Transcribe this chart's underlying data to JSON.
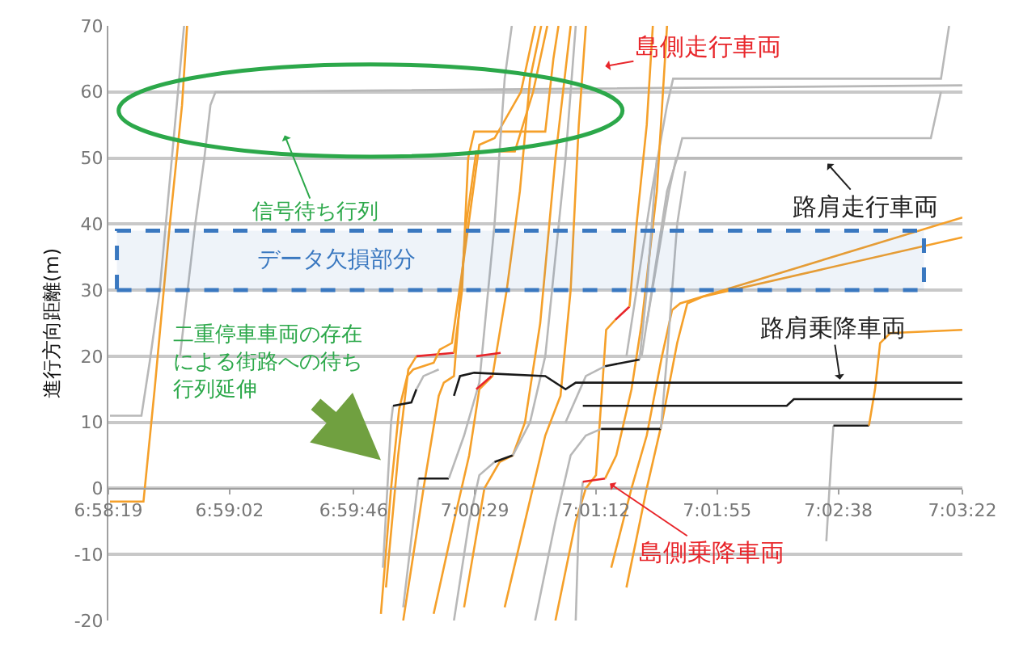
{
  "chart_data": {
    "type": "line",
    "ylabel": "進行方向距離(m)",
    "xlim": [
      6.97194,
      7.05611
    ],
    "xticks": [
      {
        "value": 6.97194,
        "label": "6:58:19"
      },
      {
        "value": 6.98389,
        "label": "6:59:02"
      },
      {
        "value": 6.99611,
        "label": "6:59:46"
      },
      {
        "value": 7.00806,
        "label": "7:00:29"
      },
      {
        "value": 7.02,
        "label": "7:01:12"
      },
      {
        "value": 7.03194,
        "label": "7:01:55"
      },
      {
        "value": 7.04389,
        "label": "7:02:38"
      },
      {
        "value": 7.05611,
        "label": "7:03:22"
      }
    ],
    "ylim": [
      -20,
      70
    ],
    "yticks": [
      -20,
      -10,
      0,
      10,
      20,
      30,
      40,
      50,
      60,
      70
    ],
    "grid": "y",
    "marker": "none",
    "line_style": "solid",
    "series": [
      {
        "color": "#b8b8b8",
        "x": [
          6.9721,
          6.9752,
          6.976,
          6.977,
          6.9785,
          6.9794
        ],
        "values": [
          11,
          11,
          19,
          30,
          55,
          70
        ]
      },
      {
        "color": "#f5a02a",
        "x": [
          6.9721,
          6.9754,
          6.9765,
          6.978,
          6.9792,
          6.9797
        ],
        "values": [
          -2,
          -2,
          15,
          40,
          58,
          70
        ]
      },
      {
        "color": "#b8b8b8",
        "x": [
          6.979,
          6.9805,
          6.9814,
          6.982,
          6.9825,
          7.0561
        ],
        "values": [
          20,
          40,
          50,
          58,
          60,
          61
        ]
      },
      {
        "color": "#b8b8b8",
        "x": [
          7.023,
          7.0255,
          7.027,
          7.0276,
          7.054,
          7.0548
        ],
        "values": [
          20,
          45,
          58,
          62,
          62,
          70
        ]
      },
      {
        "color": "#b8b8b8",
        "x": [
          7.0245,
          7.027,
          7.028,
          7.0285,
          7.053,
          7.054
        ],
        "values": [
          20,
          45,
          50,
          53,
          53,
          60
        ]
      },
      {
        "color": "#b8b8b8",
        "x": [
          7.025,
          7.0272,
          7.0279,
          7.0561
        ],
        "values": [
          25,
          45,
          50,
          50
        ]
      },
      {
        "color": "#b8b8b8",
        "x": [
          7.0427,
          7.0432,
          7.0434
        ],
        "values": [
          -8,
          5,
          9.5
        ]
      },
      {
        "color": "#1a1a1a",
        "x": [
          7.0434,
          7.0469
        ],
        "values": [
          9.5,
          9.5
        ]
      },
      {
        "color": "#f5a02a",
        "x": [
          7.0469,
          7.0475,
          7.048,
          7.049,
          7.0561
        ],
        "values": [
          9.5,
          15,
          22,
          23.5,
          24
        ]
      },
      {
        "color": "#f5a02a",
        "x": [
          6.9993,
          7.0005,
          7.0015,
          7.0023
        ],
        "values": [
          -15,
          5,
          18,
          20
        ]
      },
      {
        "color": "#e8262b",
        "x": [
          7.0023,
          7.006
        ],
        "values": [
          20,
          20.5
        ]
      },
      {
        "color": "#f5a02a",
        "x": [
          7.006,
          7.0068,
          7.0074,
          7.008,
          7.015,
          7.0158,
          7.0163
        ],
        "values": [
          20.5,
          30,
          50,
          54,
          54,
          65,
          70
        ]
      },
      {
        "color": "#f5a02a",
        "x": [
          6.9988,
          6.9998,
          7.0006,
          7.0014,
          7.002,
          7.004,
          7.0046,
          7.0058,
          7.007,
          7.0085,
          7.01,
          7.0126,
          7.014
        ],
        "values": [
          -19,
          0,
          12,
          17,
          18,
          19,
          21,
          22,
          35,
          52,
          53,
          60,
          70
        ]
      },
      {
        "color": "#f5a02a",
        "x": [
          7.001,
          7.003,
          7.0045,
          7.005,
          7.006,
          7.0072,
          7.0082,
          7.012,
          7.0138,
          7.0152
        ],
        "values": [
          -20,
          0,
          14,
          16,
          17,
          40,
          51,
          51,
          60,
          70
        ]
      },
      {
        "color": "#f5a02a",
        "x": [
          7.004,
          7.006,
          7.0075,
          7.0085,
          7.0098,
          7.0112,
          7.0125,
          7.0135,
          7.0146
        ],
        "values": [
          -19,
          -5,
          5,
          15,
          17,
          30,
          45,
          62,
          70
        ]
      },
      {
        "color": "#f5a02a",
        "x": [
          7.007,
          7.009,
          7.0105,
          7.0118,
          7.013,
          7.0145,
          7.016,
          7.0175
        ],
        "values": [
          -18,
          0,
          4,
          5,
          10,
          25,
          50,
          70
        ]
      },
      {
        "color": "#f5a02a",
        "x": [
          7.011,
          7.013,
          7.015,
          7.0165,
          7.0175,
          7.0183,
          7.019
        ],
        "values": [
          -18,
          -5,
          8,
          14,
          30,
          55,
          70
        ]
      },
      {
        "color": "#f5a02a",
        "x": [
          7.016,
          7.018,
          7.019,
          7.02,
          7.0206,
          7.021,
          7.0219
        ],
        "values": [
          -20,
          -5,
          0,
          2,
          15,
          24,
          25.5
        ]
      },
      {
        "color": "#e8262b",
        "x": [
          7.0219,
          7.0233
        ],
        "values": [
          25.5,
          27.5
        ]
      },
      {
        "color": "#f5a02a",
        "x": [
          7.0233,
          7.024,
          7.025,
          7.0256
        ],
        "values": [
          27.5,
          40,
          55,
          70
        ]
      },
      {
        "color": "#b8b8b8",
        "x": [
          7.018,
          7.0183,
          7.0187
        ],
        "values": [
          -20,
          -5,
          1
        ]
      },
      {
        "color": "#e8262b",
        "x": [
          7.0187,
          7.0209
        ],
        "values": [
          1,
          1.5
        ]
      },
      {
        "color": "#f5a02a",
        "x": [
          7.0209,
          7.022,
          7.0235,
          7.0245,
          7.026,
          7.027
        ],
        "values": [
          1.5,
          5,
          15,
          25,
          45,
          70
        ]
      },
      {
        "color": "#f5a02a",
        "x": [
          7.0215,
          7.0235,
          7.025,
          7.0265,
          7.0275,
          7.0283,
          7.0561
        ],
        "values": [
          -12,
          0,
          8,
          20,
          27,
          28,
          41
        ]
      },
      {
        "color": "#f5a02a",
        "x": [
          7.023,
          7.025,
          7.0265,
          7.028,
          7.029,
          7.0305,
          7.0561
        ],
        "values": [
          -15,
          0,
          10,
          22,
          28,
          29,
          38
        ]
      },
      {
        "color": "#b8b8b8",
        "x": [
          6.999,
          6.9998,
          7.0
        ],
        "values": [
          -12,
          10,
          12.5
        ]
      },
      {
        "color": "#1a1a1a",
        "x": [
          7.0,
          7.0018,
          7.0023
        ],
        "values": [
          12.5,
          13,
          15
        ]
      },
      {
        "color": "#b8b8b8",
        "x": [
          7.0023,
          7.003,
          7.0045
        ],
        "values": [
          15,
          17,
          18
        ]
      },
      {
        "color": "#b8b8b8",
        "x": [
          7.001,
          7.002,
          7.0025
        ],
        "values": [
          -18,
          -5,
          1.5
        ]
      },
      {
        "color": "#1a1a1a",
        "x": [
          7.0025,
          7.0055
        ],
        "values": [
          1.5,
          1.5
        ]
      },
      {
        "color": "#b8b8b8",
        "x": [
          7.0055,
          7.007,
          7.0085,
          7.01,
          7.011,
          7.0117
        ],
        "values": [
          1.5,
          8,
          16,
          40,
          62,
          70
        ]
      },
      {
        "color": "#b8b8b8",
        "x": [
          7.006,
          7.0075,
          7.0085,
          7.01
        ],
        "values": [
          -20,
          -5,
          2,
          4
        ]
      },
      {
        "color": "#1a1a1a",
        "x": [
          7.01,
          7.0118
        ],
        "values": [
          4,
          5
        ]
      },
      {
        "color": "#b8b8b8",
        "x": [
          7.0118,
          7.0135,
          7.015,
          7.017,
          7.018
        ],
        "values": [
          5,
          10,
          20,
          50,
          70
        ]
      },
      {
        "color": "#b8b8b8",
        "x": [
          7.014,
          7.016,
          7.0175,
          7.019,
          7.0205
        ],
        "values": [
          -20,
          -5,
          5,
          8,
          9
        ]
      },
      {
        "color": "#1a1a1a",
        "x": [
          7.0205,
          7.0264
        ],
        "values": [
          9,
          9
        ]
      },
      {
        "color": "#b8b8b8",
        "x": [
          7.0264,
          7.027,
          7.028,
          7.0288
        ],
        "values": [
          9,
          20,
          40,
          48
        ]
      },
      {
        "color": "#b8b8b8",
        "x": [
          7.017,
          7.019,
          7.0209
        ],
        "values": [
          10,
          17,
          18.5
        ]
      },
      {
        "color": "#1a1a1a",
        "x": [
          7.0209,
          7.0243
        ],
        "values": [
          18.5,
          19.5
        ]
      },
      {
        "color": "#b8b8b8",
        "x": [
          7.0243,
          7.025,
          7.026
        ],
        "values": [
          19.5,
          30,
          50
        ]
      },
      {
        "color": "#1a1a1a",
        "x": [
          7.006,
          7.0066,
          7.008,
          7.015,
          7.017,
          7.018,
          7.0561
        ],
        "values": [
          14,
          17,
          17.5,
          17,
          15,
          16,
          16
        ]
      },
      {
        "color": "#1a1a1a",
        "x": [
          7.0187,
          7.0388,
          7.0395,
          7.0561
        ],
        "values": [
          12.5,
          12.5,
          13.5,
          13.5
        ]
      },
      {
        "color": "#e8262b",
        "x": [
          7.0082,
          7.0106
        ],
        "values": [
          20,
          20.5
        ]
      },
      {
        "color": "#e8262b",
        "x": [
          7.0082,
          7.0097
        ],
        "values": [
          15,
          17
        ]
      }
    ],
    "bands": [
      {
        "axis": "y",
        "from": 30,
        "to": 39,
        "label": "データ欠損部分",
        "color": "#3a78c0"
      }
    ],
    "annotations": [
      "島側走行車両",
      "信号待ち行列",
      {
        "text": "路肩走行車両",
        "x": 7.0426,
        "y": 49.5
      },
      {
        "text": "路肩乗降車両",
        "x": 7.0441,
        "y": 16
      },
      "二重停車車両の存在による街路への待ち行列延伸",
      {
        "text": "島側乗降車両",
        "x": 7.0211,
        "y": 1
      }
    ]
  }
}
